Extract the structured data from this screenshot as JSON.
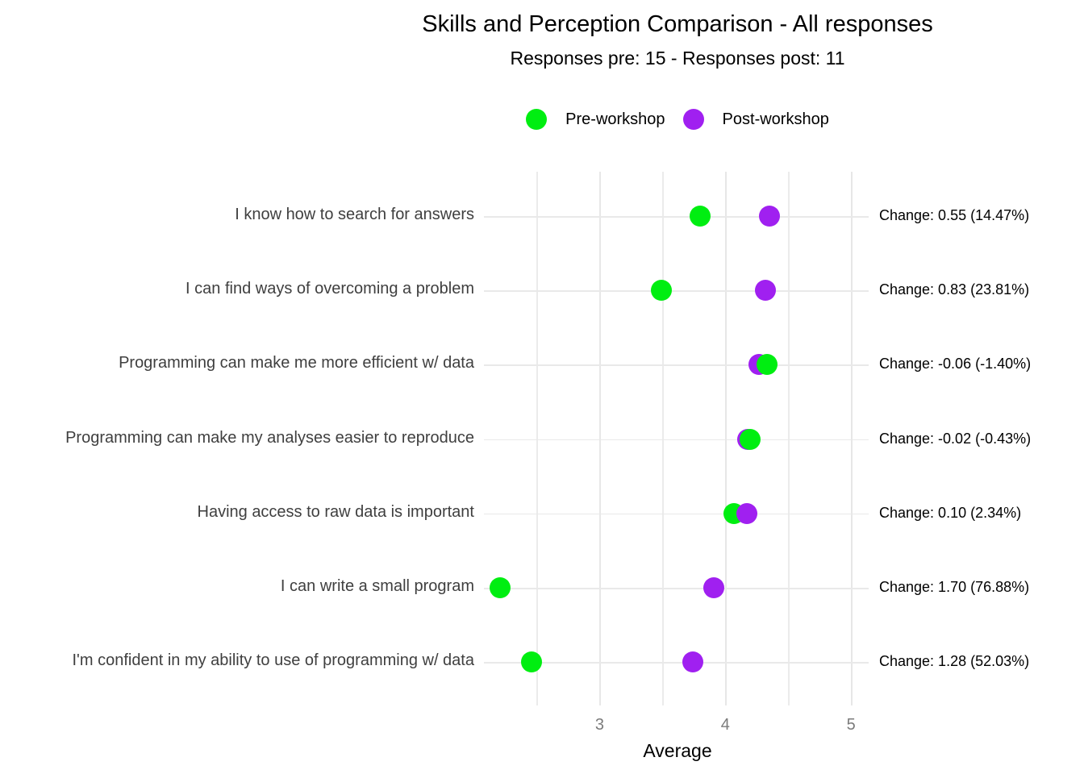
{
  "chart_data": {
    "type": "scatter",
    "variant": "cleveland-dot-plot",
    "title": "Skills and Perception Comparison - All responses",
    "subtitle": "Responses pre: 15 - Responses post: 11",
    "xlabel": "Average",
    "x_ticks": [
      3,
      4,
      5
    ],
    "x_gridlines": [
      2.5,
      3,
      3.5,
      4,
      4.5,
      5
    ],
    "xlim": [
      2.08,
      5.14
    ],
    "grid": "light-gray-on-white",
    "legend_position": "top-center",
    "categories": [
      "I know how to search for answers",
      "I can find ways of overcoming a problem",
      "Programming can make me more efficient w/ data",
      "Programming can make my analyses easier to reproduce",
      "Having access to raw data is important",
      "I can write a small program",
      "I'm confident in my ability to use of programming w/ data"
    ],
    "series": [
      {
        "name": "Pre-workshop",
        "color": "#00EE11",
        "values": [
          3.8,
          3.49,
          4.33,
          4.2,
          4.07,
          2.21,
          2.46
        ]
      },
      {
        "name": "Post-workshop",
        "color": "#A020F0",
        "values": [
          4.35,
          4.32,
          4.27,
          4.18,
          4.17,
          3.91,
          3.74
        ]
      }
    ],
    "front_series": [
      "post",
      "post",
      "pre",
      "pre",
      "post",
      "post",
      "post"
    ],
    "annotations": [
      "Change: 0.55 (14.47%)",
      "Change: 0.83 (23.81%)",
      "Change: -0.06 (-1.40%)",
      "Change: -0.02 (-0.43%)",
      "Change: 0.10 (2.34%)",
      "Change: 1.70 (76.88%)",
      "Change: 1.28 (52.03%)"
    ],
    "colors": {
      "grid": "#EBEBEB",
      "tick_text": "#7B7B7B",
      "category_text": "#3F3F3F",
      "annotation_text": "#000000",
      "title_text": "#000000"
    }
  }
}
